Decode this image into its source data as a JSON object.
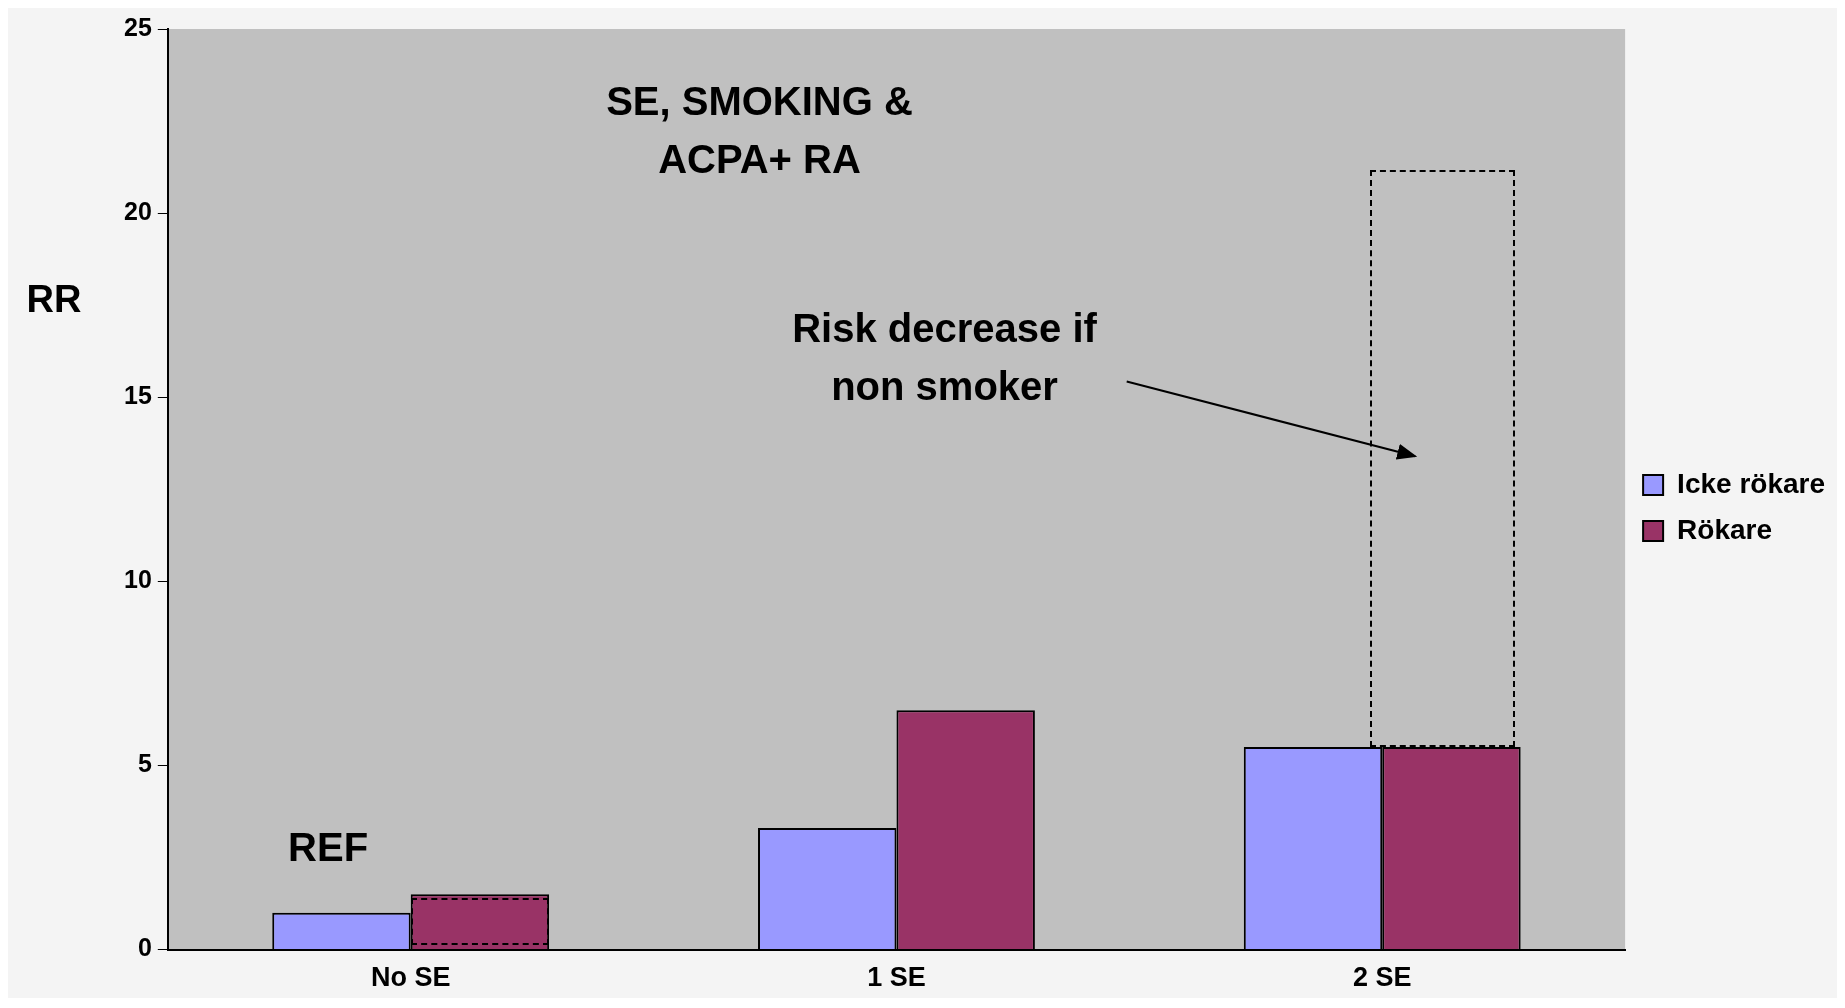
{
  "chart_data": {
    "type": "bar",
    "title": "SE, SMOKING & ACPA+ RA",
    "ylabel": "RR",
    "categories": [
      "No SE",
      "1 SE",
      "2 SE"
    ],
    "series": [
      {
        "name": "Icke rökare",
        "color": "#9999ff",
        "values": [
          1.0,
          3.3,
          5.5
        ]
      },
      {
        "name": "Rökare",
        "color": "#993366",
        "values": [
          1.5,
          6.5,
          5.5
        ]
      }
    ],
    "ylim": [
      0,
      25
    ],
    "yticks": [
      0,
      5,
      10,
      15,
      20,
      25
    ],
    "grid": false,
    "legend": "right",
    "annotations": [
      "Risk decrease if non smoker",
      "REF"
    ]
  }
}
